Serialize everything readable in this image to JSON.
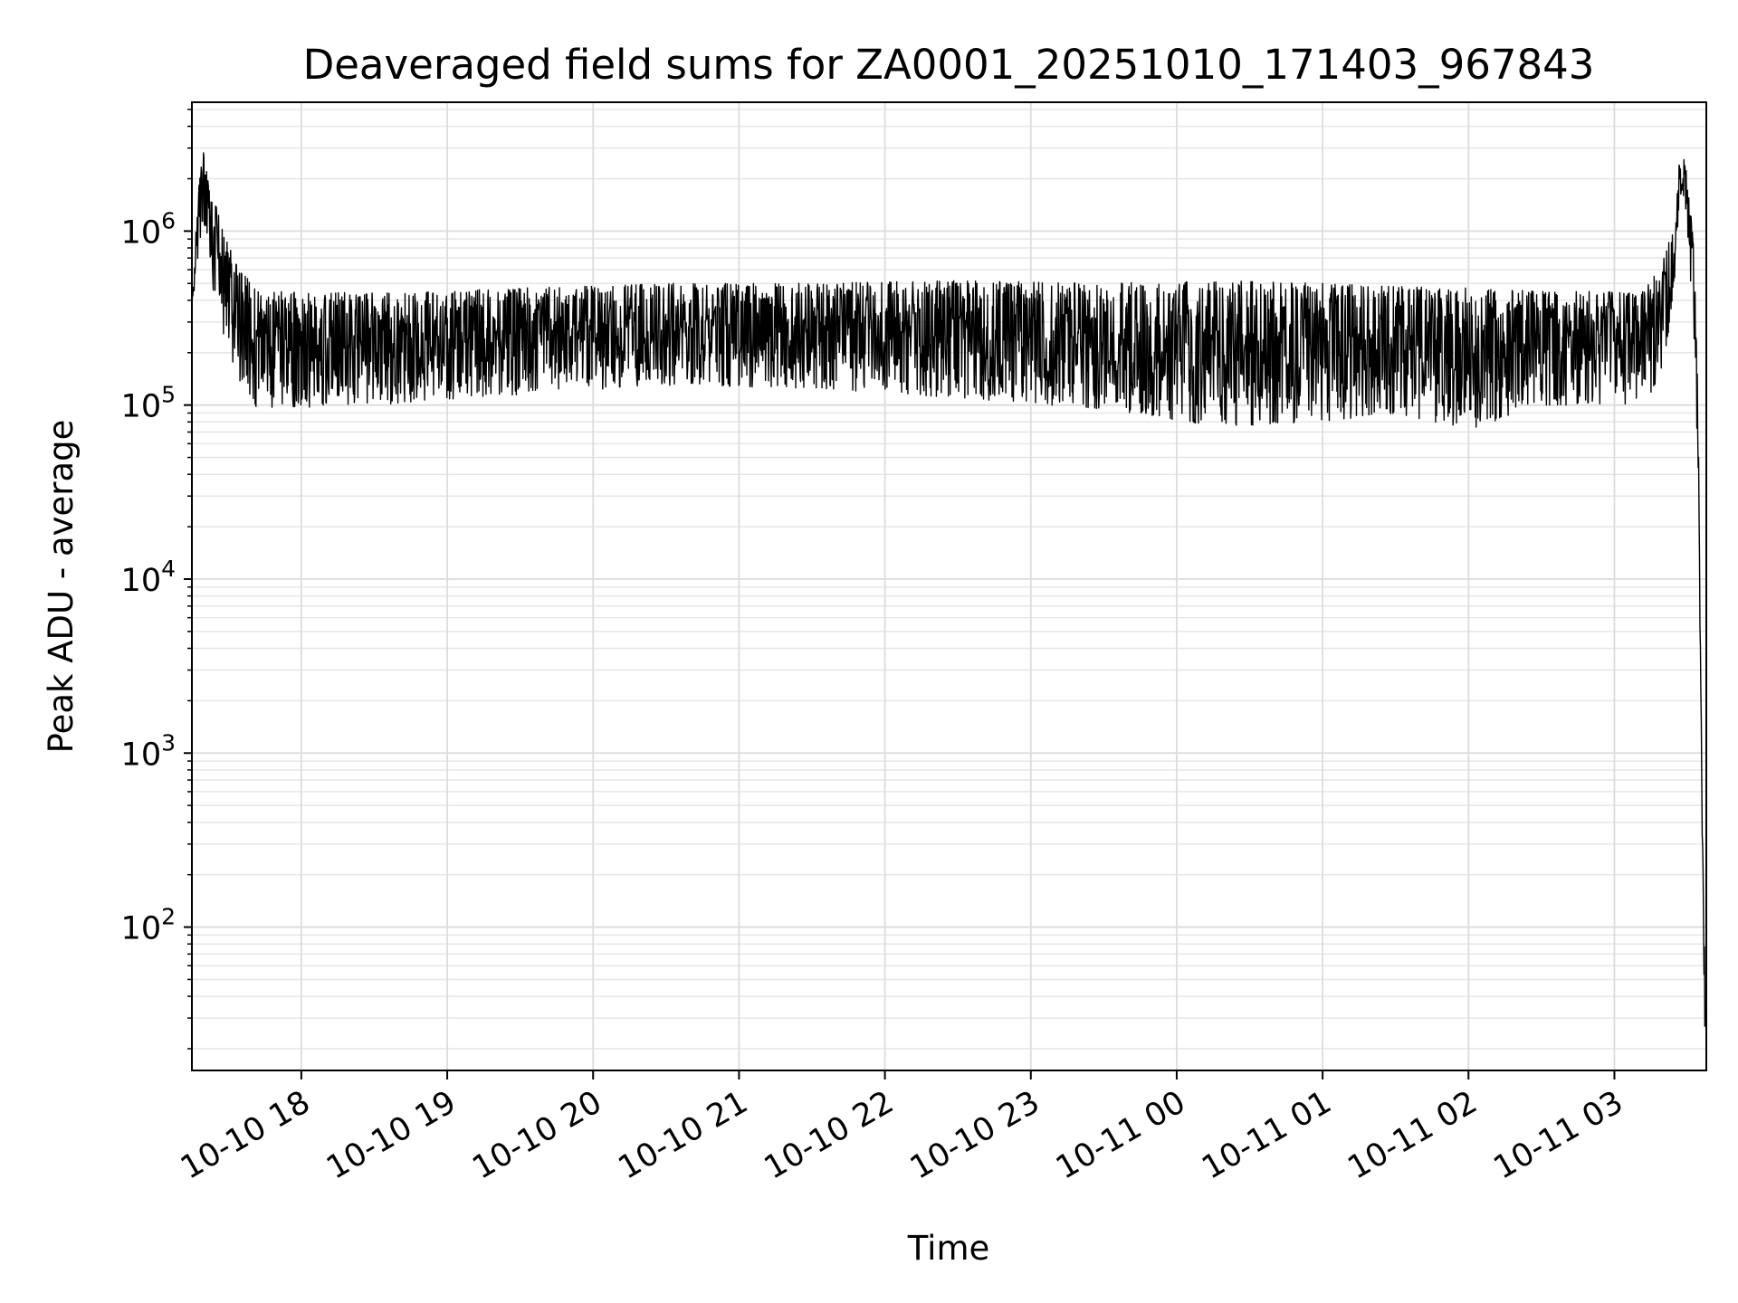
{
  "chart_data": {
    "type": "line",
    "title": "Deaveraged field sums for ZA0001_20251010_171403_967843",
    "xlabel": "Time",
    "ylabel": "Peak ADU - average",
    "yscale": "log",
    "ylim": [
      15,
      5500000
    ],
    "x_unit": "hours since 2025-10-10 17:00",
    "xlim": [
      17.25,
      27.63
    ],
    "grid": true,
    "x_ticks": [
      {
        "value": 18,
        "label": "10-10 18"
      },
      {
        "value": 19,
        "label": "10-10 19"
      },
      {
        "value": 20,
        "label": "10-10 20"
      },
      {
        "value": 21,
        "label": "10-10 21"
      },
      {
        "value": 22,
        "label": "10-10 22"
      },
      {
        "value": 23,
        "label": "10-10 23"
      },
      {
        "value": 24,
        "label": "10-11 00"
      },
      {
        "value": 25,
        "label": "10-11 01"
      },
      {
        "value": 26,
        "label": "10-11 02"
      },
      {
        "value": 27,
        "label": "10-11 03"
      }
    ],
    "y_ticks": [
      {
        "value": 100,
        "base": "10",
        "exp": "2"
      },
      {
        "value": 1000,
        "base": "10",
        "exp": "3"
      },
      {
        "value": 10000,
        "base": "10",
        "exp": "4"
      },
      {
        "value": 100000,
        "base": "10",
        "exp": "5"
      },
      {
        "value": 1000000,
        "base": "10",
        "exp": "6"
      }
    ],
    "series": [
      {
        "name": "deaveraged field sum",
        "color": "#000000",
        "envelope": [
          {
            "t": 17.25,
            "low": 350000,
            "high": 500000
          },
          {
            "t": 17.3,
            "low": 700000,
            "high": 1900000
          },
          {
            "t": 17.33,
            "low": 1200000,
            "high": 3000000
          },
          {
            "t": 17.38,
            "low": 500000,
            "high": 1800000
          },
          {
            "t": 17.45,
            "low": 250000,
            "high": 1100000
          },
          {
            "t": 17.55,
            "low": 150000,
            "high": 650000
          },
          {
            "t": 17.7,
            "low": 95000,
            "high": 450000
          },
          {
            "t": 18.5,
            "low": 100000,
            "high": 440000
          },
          {
            "t": 19.5,
            "low": 115000,
            "high": 470000
          },
          {
            "t": 20.5,
            "low": 130000,
            "high": 500000
          },
          {
            "t": 21.5,
            "low": 125000,
            "high": 500000
          },
          {
            "t": 22.5,
            "low": 110000,
            "high": 520000
          },
          {
            "t": 23.5,
            "low": 95000,
            "high": 500000
          },
          {
            "t": 24.3,
            "low": 75000,
            "high": 520000
          },
          {
            "t": 25.0,
            "low": 80000,
            "high": 500000
          },
          {
            "t": 25.5,
            "low": 90000,
            "high": 480000
          },
          {
            "t": 26.0,
            "low": 72000,
            "high": 470000
          },
          {
            "t": 26.5,
            "low": 100000,
            "high": 450000
          },
          {
            "t": 27.2,
            "low": 100000,
            "high": 450000
          },
          {
            "t": 27.3,
            "low": 140000,
            "high": 600000
          },
          {
            "t": 27.38,
            "low": 250000,
            "high": 900000
          },
          {
            "t": 27.44,
            "low": 1000000,
            "high": 2300000
          },
          {
            "t": 27.46,
            "low": 1800000,
            "high": 3000000
          },
          {
            "t": 27.5,
            "low": 1000000,
            "high": 2100000
          },
          {
            "t": 27.54,
            "low": 300000,
            "high": 900000
          },
          {
            "t": 27.56,
            "low": 110000,
            "high": 380000
          },
          {
            "t": 27.58,
            "low": 20000,
            "high": 40000
          },
          {
            "t": 27.6,
            "low": 300,
            "high": 600
          },
          {
            "t": 27.62,
            "low": 25,
            "high": 60
          }
        ]
      }
    ]
  }
}
